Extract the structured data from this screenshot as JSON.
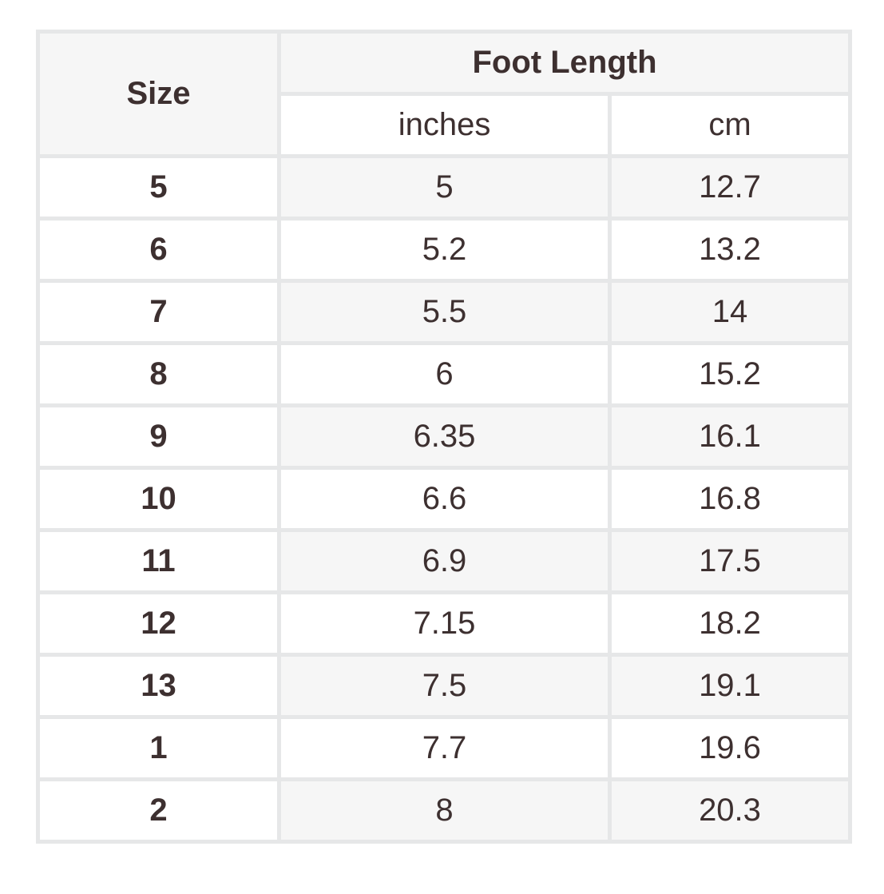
{
  "table": {
    "header": {
      "size": "Size",
      "group": "Foot Length",
      "inches": "inches",
      "cm": "cm"
    },
    "rows": [
      {
        "size": "5",
        "inches": "5",
        "cm": "12.7"
      },
      {
        "size": "6",
        "inches": "5.2",
        "cm": "13.2"
      },
      {
        "size": "7",
        "inches": "5.5",
        "cm": "14"
      },
      {
        "size": "8",
        "inches": "6",
        "cm": "15.2"
      },
      {
        "size": "9",
        "inches": "6.35",
        "cm": "16.1"
      },
      {
        "size": "10",
        "inches": "6.6",
        "cm": "16.8"
      },
      {
        "size": "11",
        "inches": "6.9",
        "cm": "17.5"
      },
      {
        "size": "12",
        "inches": "7.15",
        "cm": "18.2"
      },
      {
        "size": "13",
        "inches": "7.5",
        "cm": "19.1"
      },
      {
        "size": "1",
        "inches": "7.7",
        "cm": "19.6"
      },
      {
        "size": "2",
        "inches": "8",
        "cm": "20.3"
      }
    ]
  }
}
